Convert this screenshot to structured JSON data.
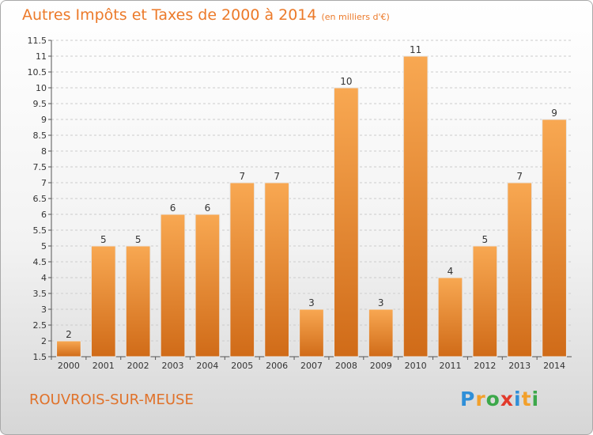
{
  "header": {
    "title": "Autres Impôts et Taxes de 2000 à 2014",
    "unit": "(en milliers d'€)"
  },
  "footer": {
    "commune": "ROUVROIS-SUR-MEUSE",
    "logo": [
      "P",
      "r",
      "o",
      "x",
      "i",
      "t",
      "i"
    ],
    "logo_colors": [
      "#2f8fd8",
      "#f2a02b",
      "#3ca84a",
      "#e23a2b",
      "#2f8fd8",
      "#f2a02b",
      "#3ca84a"
    ]
  },
  "colors": {
    "title": "#ec7a2a",
    "bar_light": "#f8a852",
    "bar_dark": "#d06b18",
    "grid": "#cccccc"
  },
  "chart_data": {
    "type": "bar",
    "title": "Autres Impôts et Taxes de 2000 à 2014",
    "subtitle": "(en milliers d'€)",
    "categories": [
      "2000",
      "2001",
      "2002",
      "2003",
      "2004",
      "2005",
      "2006",
      "2007",
      "2008",
      "2009",
      "2010",
      "2011",
      "2012",
      "2013",
      "2014"
    ],
    "values": [
      2,
      5,
      5,
      6,
      6,
      7,
      7,
      3,
      10,
      3,
      11,
      4,
      5,
      7,
      9
    ],
    "ylim": [
      1.5,
      11.5
    ],
    "yticks": [
      "1.5",
      "2",
      "2.5",
      "3",
      "3.5",
      "4",
      "4.5",
      "5",
      "5.5",
      "6",
      "6.5",
      "7",
      "7.5",
      "8",
      "8.5",
      "9",
      "9.5",
      "10",
      "10.5",
      "11",
      "11.5"
    ],
    "grid": true,
    "xlabel": "",
    "ylabel": ""
  }
}
